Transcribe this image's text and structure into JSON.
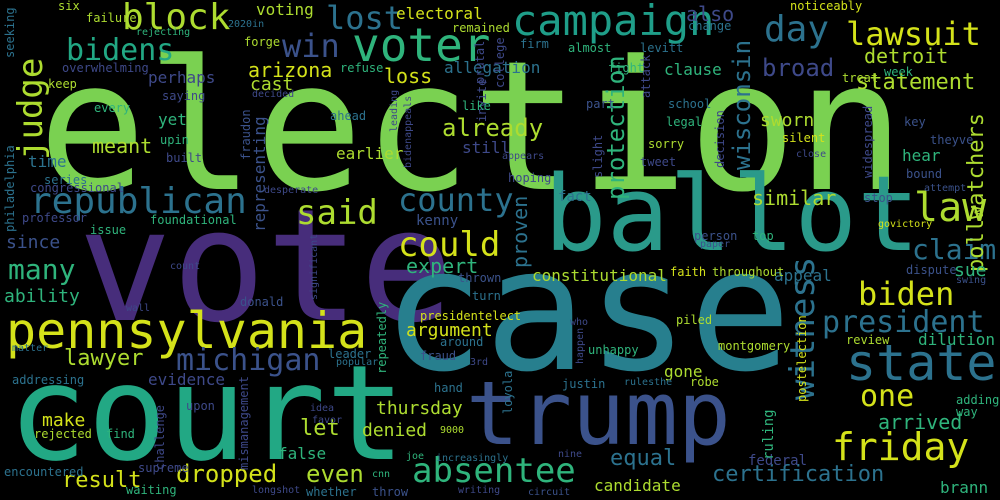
{
  "background": "#000000",
  "words": {
    "election": "election",
    "vote": "vote",
    "case": "case",
    "court": "court",
    "ballot": "ballot",
    "trump": "trump",
    "pennsylvania": "pennsylvania",
    "voter": "voter",
    "campaign": "campaign",
    "state": "state",
    "republican": "republican",
    "block": "block",
    "lost": "lost",
    "win": "win",
    "bidens": "bidens",
    "judge": "judge",
    "lawsuit": "lawsuit",
    "day": "day",
    "friday": "friday",
    "absentee": "absentee",
    "could": "could",
    "said": "said",
    "county": "county",
    "law": "law",
    "witness": "witness",
    "michigan": "michigan",
    "president": "president",
    "biden": "biden",
    "claim": "claim",
    "one": "one",
    "many": "many",
    "statement": "statement",
    "already": "already",
    "wisconsin": "wisconsin",
    "protection": "protection",
    "arizona": "arizona",
    "broad": "broad",
    "detroit": "detroit",
    "voting": "voting",
    "electoral": "electoral",
    "also": "also",
    "certification": "certification",
    "dropped": "dropped",
    "result": "result",
    "equal": "equal",
    "lawyer": "lawyer",
    "expert": "expert",
    "proven": "proven",
    "constitutional": "constitutional",
    "pollwatchers": "pollwatchers",
    "similar": "similar",
    "sworn": "sworn",
    "since": "since",
    "ability": "ability",
    "meant": "meant",
    "perhaps": "perhaps",
    "cast": "cast",
    "loss": "loss",
    "allegation": "allegation",
    "clause": "clause",
    "thursday": "thursday",
    "denied": "denied",
    "argument": "argument",
    "let": "let",
    "even": "even",
    "false": "false",
    "make": "make",
    "evidence": "evidence",
    "gone": "gone",
    "arrived": "arrived",
    "sue": "sue",
    "dilution": "dilution",
    "hear": "hear",
    "appeal": "appeal",
    "candidate": "candidate",
    "fact": "fact",
    "kenny": "kenny",
    "earlier": "earlier",
    "yet": "yet",
    "still": "still",
    "time": "time",
    "representing": "representing",
    "federal": "federal",
    "ruling": "ruling",
    "school": "school",
    "legal": "legal",
    "sorry": "sorry",
    "tweet": "tweet",
    "silent": "silent",
    "key": "key",
    "theyve": "theyve",
    "bound": "bound",
    "widespread": "widespread",
    "treat": "treat",
    "week": "week",
    "noticeably": "noticeably",
    "change": "change",
    "levitt": "levitt",
    "almost": "almost",
    "fight": "fight",
    "firm": "firm",
    "remained": "remained",
    "six": "six",
    "failure": "failure",
    "rejecting": "rejecting",
    "forge": "forge",
    "y2020in": "2020in",
    "seeking": "seeking",
    "overwhelming": "overwhelming",
    "keep": "keep",
    "every": "every",
    "saying": "saying",
    "upin": "upin",
    "built": "built",
    "refuse": "refuse",
    "decided": "decided",
    "fraudon": "fraudon",
    "ahead": "ahead",
    "leading": "leading",
    "bidenappeals": "bidenappeals",
    "prutal": "prutal",
    "college": "college",
    "invite": "invite",
    "attack": "attack",
    "like": "like",
    "part": "part",
    "decision": "decision",
    "slight": "slight",
    "appears": "appears",
    "hoping": "hoping",
    "desperate": "desperate",
    "series": "series",
    "congressional": "congressional",
    "philadelphia": "philadelphia",
    "professor": "professor",
    "foundational": "foundational",
    "issue": "issue",
    "attempt": "attempt",
    "stop": "stop",
    "govictory": "govictory",
    "close": "close",
    "dispute": "dispute",
    "swing": "swing",
    "paper": "paper",
    "person": "person",
    "top": "top",
    "faith": "faith",
    "throughout": "throughout",
    "thrown": "thrown",
    "turn": "turn",
    "donald": "donald",
    "wall": "wall",
    "significant": "significant",
    "count": "count",
    "presidentelect": "presidentelect",
    "piled": "piled",
    "who": "who",
    "happen": "happen",
    "unhappy": "unhappy",
    "montgomery": "montgomery",
    "review": "review",
    "adding": "adding",
    "way": "way",
    "postelection": "postelection",
    "leader": "leader",
    "popular": "popular",
    "repeatedly": "repeatedly",
    "around": "around",
    "fraud": "fraud",
    "n3rd": "3rd",
    "hand": "hand",
    "justin": "justin",
    "rulesthe": "rulesthe",
    "robe": "robe",
    "loyola": "loyola",
    "matter": "matter",
    "addressing": "addressing",
    "upon": "upon",
    "mismanagement": "mismanagement",
    "idea": "idea",
    "favor": "favor",
    "n9000": "9000",
    "rejected": "rejected",
    "find": "find",
    "challenge": "challenge",
    "joe": "joe",
    "increasingly": "increasingly",
    "nine": "nine",
    "encountered": "encountered",
    "supreme": "supreme",
    "cnn": "cnn",
    "waiting": "waiting",
    "longshot": "longshot",
    "whether": "whether",
    "throw": "throw",
    "writing": "writing",
    "circuit": "circuit",
    "brann": "brann"
  }
}
